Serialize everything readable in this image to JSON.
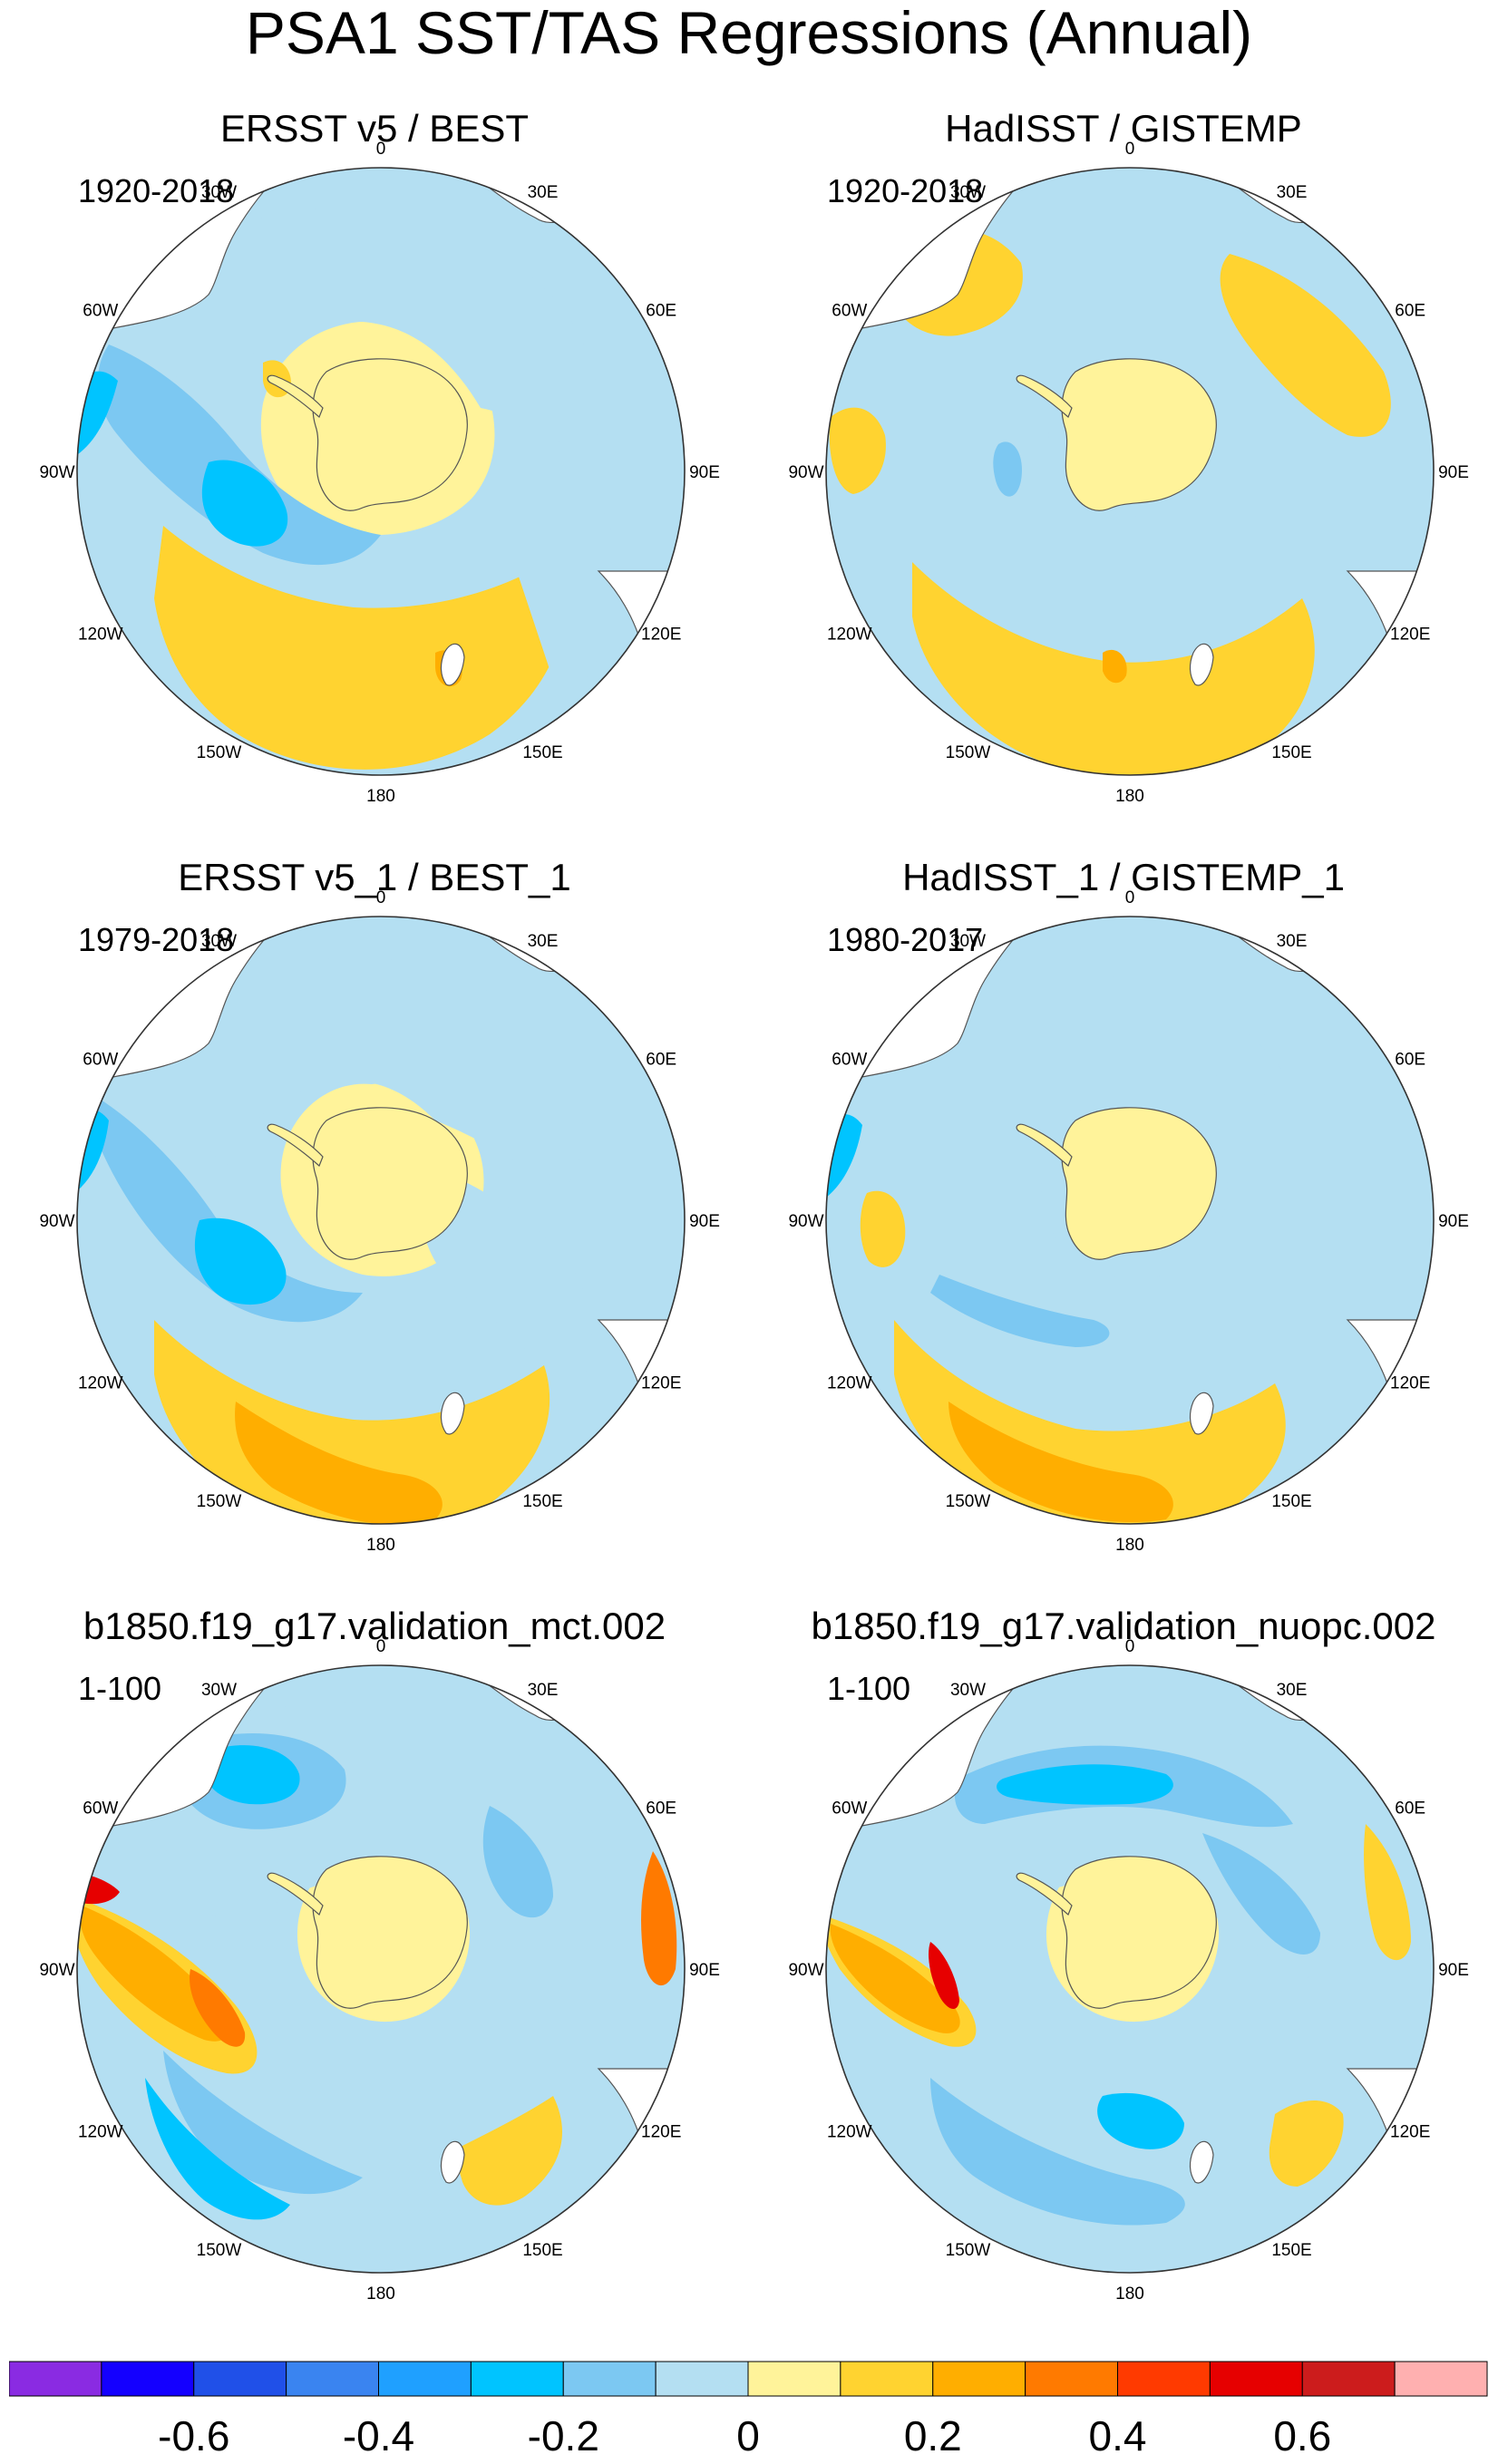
{
  "figure": {
    "title": "PSA1 SST/TAS Regressions (Annual)"
  },
  "panels": [
    {
      "title": "ERSST v5 / BEST",
      "period": "1920-2018"
    },
    {
      "title": "HadISST / GISTEMP",
      "period": "1920-2018"
    },
    {
      "title": "ERSST v5_1 / BEST_1",
      "period": "1979-2018"
    },
    {
      "title": "HadISST_1 / GISTEMP_1",
      "period": "1980-2017"
    },
    {
      "title": "b1850.f19_g17.validation_mct.002",
      "period": "1-100"
    },
    {
      "title": "b1850.f19_g17.validation_nuopc.002",
      "period": "1-100"
    }
  ],
  "longitude_labels": [
    "0",
    "30E",
    "60E",
    "90E",
    "120E",
    "150E",
    "180",
    "150W",
    "120W",
    "90W",
    "60W",
    "30W"
  ],
  "colorbar": {
    "colors": [
      "#8a2be2",
      "#1400ff",
      "#2050e8",
      "#3a84f0",
      "#1fa0ff",
      "#00c4ff",
      "#7cc8f2",
      "#b4dff2",
      "#fff39a",
      "#ffd330",
      "#ffae00",
      "#ff7a00",
      "#ff3a00",
      "#e60000",
      "#cc1c1c",
      "#ffb0b0"
    ],
    "tick_labels": [
      "-0.6",
      "-0.4",
      "-0.2",
      "0",
      "0.2",
      "0.4",
      "0.6"
    ]
  },
  "chart_data": {
    "type": "heatmap",
    "title": "PSA1 SST/TAS Regressions (Annual)",
    "projection": "south polar stereographic",
    "contour_levels": [
      -0.7,
      -0.6,
      -0.5,
      -0.4,
      -0.3,
      -0.2,
      -0.1,
      0,
      0.1,
      0.2,
      0.3,
      0.4,
      0.5,
      0.6,
      0.7
    ],
    "colorbar_ticks": [
      -0.6,
      -0.4,
      -0.2,
      0,
      0.2,
      0.4,
      0.6
    ],
    "longitude_ticks": [
      "0",
      "30E",
      "60E",
      "90E",
      "120E",
      "150E",
      "180",
      "150W",
      "120W",
      "90W",
      "60W",
      "30W"
    ],
    "panels": [
      {
        "title": "ERSST v5 / BEST",
        "period": "1920-2018"
      },
      {
        "title": "HadISST / GISTEMP",
        "period": "1920-2018"
      },
      {
        "title": "ERSST v5_1 / BEST_1",
        "period": "1979-2018"
      },
      {
        "title": "HadISST_1 / GISTEMP_1",
        "period": "1980-2017"
      },
      {
        "title": "b1850.f19_g17.validation_mct.002",
        "period": "1-100"
      },
      {
        "title": "b1850.f19_g17.validation_nuopc.002",
        "period": "1-100"
      }
    ]
  }
}
